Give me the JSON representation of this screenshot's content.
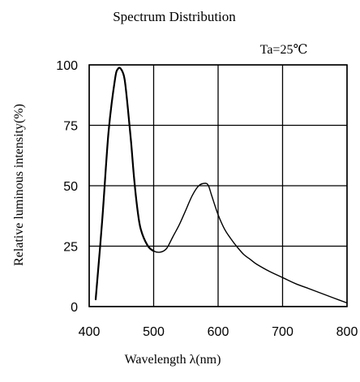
{
  "chart_data": {
    "type": "line",
    "title": "Spectrum Distribution",
    "condition": "Ta=25℃",
    "xlabel": "Wavelength  λ(nm)",
    "ylabel": "Relative luminous intensity(%)",
    "xlim": [
      400,
      800
    ],
    "ylim": [
      0,
      100
    ],
    "x_ticks": [
      "400",
      "500",
      "600",
      "700",
      "800"
    ],
    "y_ticks": [
      "0",
      "25",
      "50",
      "75",
      "100"
    ],
    "grid": true,
    "series": [
      {
        "x": [
          410,
          420,
          430,
          440,
          445,
          450,
          455,
          460,
          465,
          470,
          475,
          480,
          490,
          500,
          510,
          520,
          530,
          540,
          550,
          560,
          570,
          580,
          585,
          590,
          600,
          610,
          620,
          630,
          640,
          650,
          660,
          680,
          700,
          720,
          740,
          760,
          780,
          800
        ],
        "values": [
          3,
          35,
          72,
          94,
          98.5,
          98,
          94,
          82,
          68,
          52,
          40,
          32,
          25.5,
          23,
          22.5,
          24,
          29,
          34,
          40,
          46,
          50,
          51,
          50,
          46,
          38,
          32,
          28,
          24.5,
          21.5,
          19.5,
          17.5,
          14.5,
          12,
          9.5,
          7.5,
          5.5,
          3.5,
          1.5
        ]
      }
    ]
  }
}
